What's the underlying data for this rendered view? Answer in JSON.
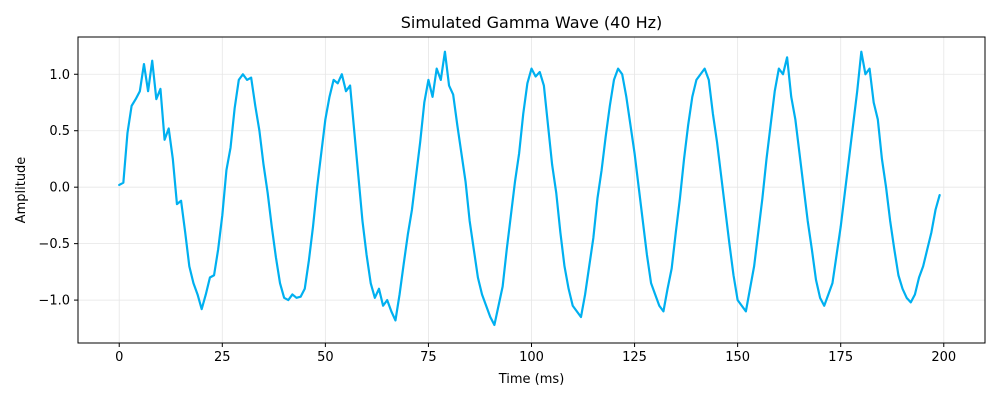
{
  "chart_data": {
    "type": "line",
    "title": "Simulated Gamma Wave (40 Hz)",
    "xlabel": "Time (ms)",
    "ylabel": "Amplitude",
    "xlim": [
      -10,
      210
    ],
    "ylim": [
      -1.38,
      1.33
    ],
    "x_ticks": [
      0,
      25,
      50,
      75,
      100,
      125,
      150,
      175,
      200
    ],
    "x_tick_labels": [
      "0",
      "25",
      "50",
      "75",
      "100",
      "125",
      "150",
      "175",
      "200"
    ],
    "y_ticks": [
      -1.0,
      -0.5,
      0.0,
      0.5,
      1.0
    ],
    "y_tick_labels": [
      "−1.0",
      "−0.5",
      "0.0",
      "0.5",
      "1.0"
    ],
    "grid": true,
    "line_color": "#00b0f0",
    "series": [
      {
        "name": "",
        "points": [
          [
            0,
            0.02
          ],
          [
            1,
            0.04
          ],
          [
            2,
            0.48
          ],
          [
            3,
            0.72
          ],
          [
            4,
            0.78
          ],
          [
            5,
            0.85
          ],
          [
            6,
            1.09
          ],
          [
            7,
            0.85
          ],
          [
            8,
            1.12
          ],
          [
            9,
            0.78
          ],
          [
            10,
            0.87
          ],
          [
            11,
            0.42
          ],
          [
            12,
            0.52
          ],
          [
            13,
            0.25
          ],
          [
            14,
            -0.15
          ],
          [
            15,
            -0.12
          ],
          [
            16,
            -0.4
          ],
          [
            17,
            -0.7
          ],
          [
            18,
            -0.85
          ],
          [
            19,
            -0.95
          ],
          [
            20,
            -1.08
          ],
          [
            21,
            -0.95
          ],
          [
            22,
            -0.8
          ],
          [
            23,
            -0.78
          ],
          [
            24,
            -0.55
          ],
          [
            25,
            -0.25
          ],
          [
            26,
            0.15
          ],
          [
            27,
            0.35
          ],
          [
            28,
            0.7
          ],
          [
            29,
            0.95
          ],
          [
            30,
            1.0
          ],
          [
            31,
            0.95
          ],
          [
            32,
            0.97
          ],
          [
            33,
            0.72
          ],
          [
            34,
            0.5
          ],
          [
            35,
            0.2
          ],
          [
            36,
            -0.05
          ],
          [
            37,
            -0.35
          ],
          [
            38,
            -0.62
          ],
          [
            39,
            -0.85
          ],
          [
            40,
            -0.98
          ],
          [
            41,
            -1.0
          ],
          [
            42,
            -0.95
          ],
          [
            43,
            -0.98
          ],
          [
            44,
            -0.97
          ],
          [
            45,
            -0.9
          ],
          [
            46,
            -0.65
          ],
          [
            47,
            -0.35
          ],
          [
            48,
            0.0
          ],
          [
            49,
            0.3
          ],
          [
            50,
            0.6
          ],
          [
            51,
            0.8
          ],
          [
            52,
            0.95
          ],
          [
            53,
            0.92
          ],
          [
            54,
            1.0
          ],
          [
            55,
            0.85
          ],
          [
            56,
            0.9
          ],
          [
            57,
            0.5
          ],
          [
            58,
            0.1
          ],
          [
            59,
            -0.3
          ],
          [
            60,
            -0.6
          ],
          [
            61,
            -0.85
          ],
          [
            62,
            -0.98
          ],
          [
            63,
            -0.9
          ],
          [
            64,
            -1.05
          ],
          [
            65,
            -1.0
          ],
          [
            66,
            -1.1
          ],
          [
            67,
            -1.18
          ],
          [
            68,
            -0.95
          ],
          [
            69,
            -0.68
          ],
          [
            70,
            -0.42
          ],
          [
            71,
            -0.2
          ],
          [
            72,
            0.1
          ],
          [
            73,
            0.4
          ],
          [
            74,
            0.75
          ],
          [
            75,
            0.95
          ],
          [
            76,
            0.8
          ],
          [
            77,
            1.05
          ],
          [
            78,
            0.95
          ],
          [
            79,
            1.2
          ],
          [
            80,
            0.9
          ],
          [
            81,
            0.82
          ],
          [
            82,
            0.55
          ],
          [
            83,
            0.3
          ],
          [
            84,
            0.05
          ],
          [
            85,
            -0.3
          ],
          [
            86,
            -0.55
          ],
          [
            87,
            -0.8
          ],
          [
            88,
            -0.95
          ],
          [
            89,
            -1.05
          ],
          [
            90,
            -1.15
          ],
          [
            91,
            -1.22
          ],
          [
            92,
            -1.05
          ],
          [
            93,
            -0.88
          ],
          [
            94,
            -0.55
          ],
          [
            95,
            -0.25
          ],
          [
            96,
            0.05
          ],
          [
            97,
            0.3
          ],
          [
            98,
            0.65
          ],
          [
            99,
            0.92
          ],
          [
            100,
            1.05
          ],
          [
            101,
            0.98
          ],
          [
            102,
            1.02
          ],
          [
            103,
            0.9
          ],
          [
            104,
            0.55
          ],
          [
            105,
            0.2
          ],
          [
            106,
            -0.05
          ],
          [
            107,
            -0.4
          ],
          [
            108,
            -0.7
          ],
          [
            109,
            -0.9
          ],
          [
            110,
            -1.05
          ],
          [
            111,
            -1.1
          ],
          [
            112,
            -1.15
          ],
          [
            113,
            -0.95
          ],
          [
            114,
            -0.7
          ],
          [
            115,
            -0.45
          ],
          [
            116,
            -0.1
          ],
          [
            117,
            0.15
          ],
          [
            118,
            0.45
          ],
          [
            119,
            0.72
          ],
          [
            120,
            0.95
          ],
          [
            121,
            1.05
          ],
          [
            122,
            1.0
          ],
          [
            123,
            0.8
          ],
          [
            124,
            0.55
          ],
          [
            125,
            0.3
          ],
          [
            126,
            0.0
          ],
          [
            127,
            -0.3
          ],
          [
            128,
            -0.6
          ],
          [
            129,
            -0.85
          ],
          [
            130,
            -0.95
          ],
          [
            131,
            -1.05
          ],
          [
            132,
            -1.1
          ],
          [
            133,
            -0.9
          ],
          [
            134,
            -0.72
          ],
          [
            135,
            -0.4
          ],
          [
            136,
            -0.1
          ],
          [
            137,
            0.25
          ],
          [
            138,
            0.55
          ],
          [
            139,
            0.8
          ],
          [
            140,
            0.95
          ],
          [
            141,
            1.0
          ],
          [
            142,
            1.05
          ],
          [
            143,
            0.95
          ],
          [
            144,
            0.65
          ],
          [
            145,
            0.4
          ],
          [
            146,
            0.1
          ],
          [
            147,
            -0.2
          ],
          [
            148,
            -0.5
          ],
          [
            149,
            -0.78
          ],
          [
            150,
            -1.0
          ],
          [
            151,
            -1.05
          ],
          [
            152,
            -1.1
          ],
          [
            153,
            -0.9
          ],
          [
            154,
            -0.7
          ],
          [
            155,
            -0.4
          ],
          [
            156,
            -0.1
          ],
          [
            157,
            0.25
          ],
          [
            158,
            0.55
          ],
          [
            159,
            0.85
          ],
          [
            160,
            1.05
          ],
          [
            161,
            1.0
          ],
          [
            162,
            1.15
          ],
          [
            163,
            0.8
          ],
          [
            164,
            0.6
          ],
          [
            165,
            0.3
          ],
          [
            166,
            0.0
          ],
          [
            167,
            -0.3
          ],
          [
            168,
            -0.55
          ],
          [
            169,
            -0.82
          ],
          [
            170,
            -0.98
          ],
          [
            171,
            -1.05
          ],
          [
            172,
            -0.95
          ],
          [
            173,
            -0.85
          ],
          [
            174,
            -0.6
          ],
          [
            175,
            -0.35
          ],
          [
            176,
            -0.05
          ],
          [
            177,
            0.25
          ],
          [
            178,
            0.55
          ],
          [
            179,
            0.85
          ],
          [
            180,
            1.2
          ],
          [
            181,
            1.0
          ],
          [
            182,
            1.05
          ],
          [
            183,
            0.75
          ],
          [
            184,
            0.6
          ],
          [
            185,
            0.25
          ],
          [
            186,
            0.0
          ],
          [
            187,
            -0.3
          ],
          [
            188,
            -0.55
          ],
          [
            189,
            -0.78
          ],
          [
            190,
            -0.9
          ],
          [
            191,
            -0.98
          ],
          [
            192,
            -1.02
          ],
          [
            193,
            -0.95
          ],
          [
            194,
            -0.8
          ],
          [
            195,
            -0.7
          ],
          [
            196,
            -0.55
          ],
          [
            197,
            -0.4
          ],
          [
            198,
            -0.2
          ],
          [
            199,
            -0.07
          ]
        ]
      }
    ]
  }
}
